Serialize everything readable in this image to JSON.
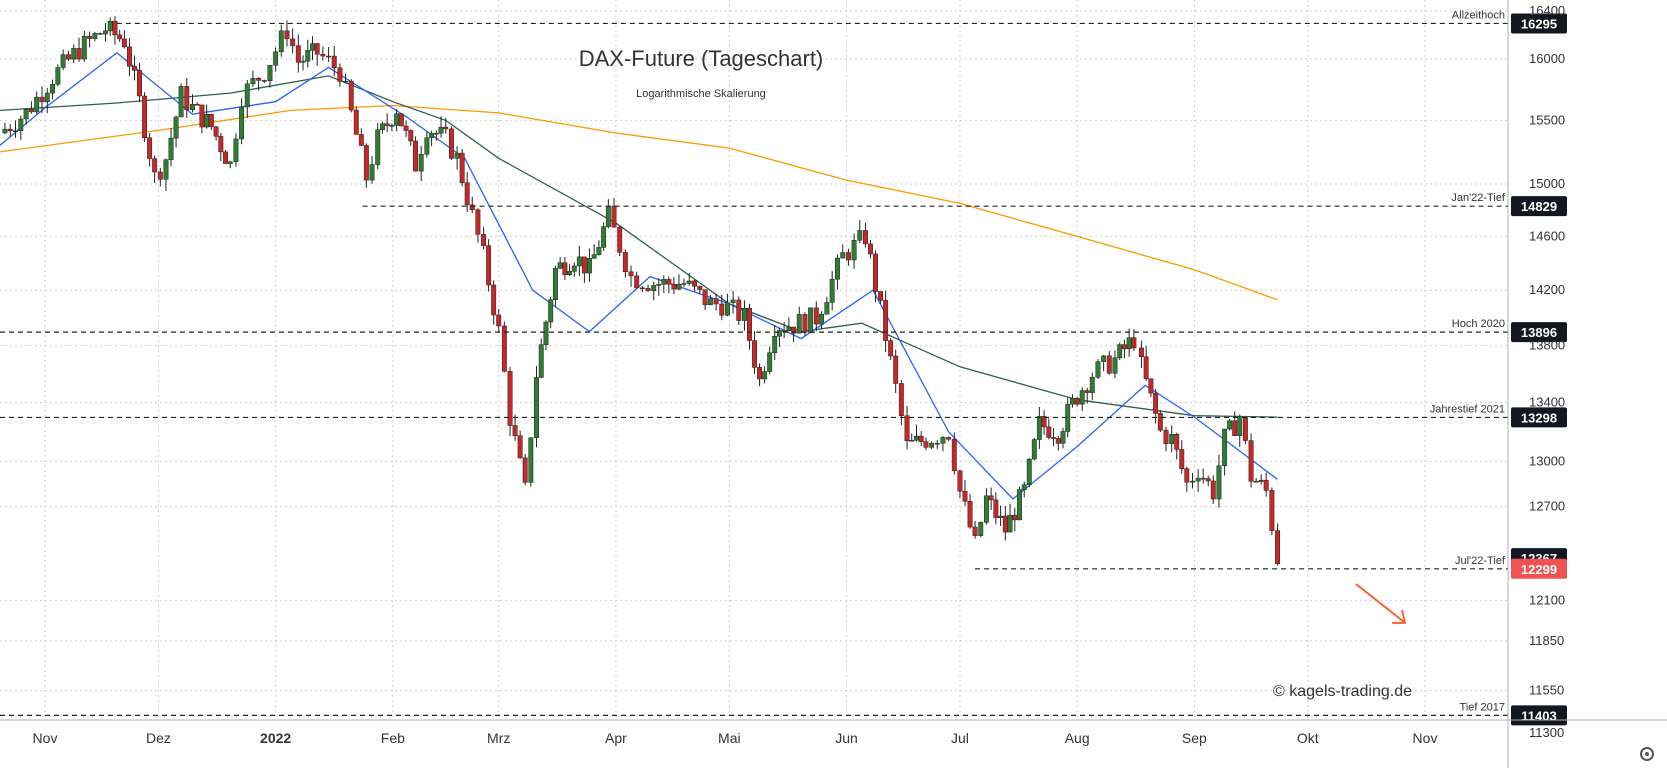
{
  "chart_data": {
    "type": "candlestick",
    "title": "DAX-Future (Tageschart)",
    "subtitle": "Logarithmische Skalierung",
    "watermark": "© kagels-trading.de",
    "y_scale": "log",
    "ylim": [
      11300,
      16400
    ],
    "y_ticks": [
      "16400",
      "16000",
      "15500",
      "15000",
      "14600",
      "14200",
      "13800",
      "13400",
      "13000",
      "12700",
      "12100",
      "11850",
      "11550",
      "11300"
    ],
    "x_ticks": [
      {
        "label": "Nov",
        "date": "2021-11-01"
      },
      {
        "label": "Dez",
        "date": "2021-12-01"
      },
      {
        "label": "2022",
        "date": "2022-01-01",
        "bold": true
      },
      {
        "label": "Feb",
        "date": "2022-02-01"
      },
      {
        "label": "Mrz",
        "date": "2022-03-01"
      },
      {
        "label": "Apr",
        "date": "2022-04-01"
      },
      {
        "label": "Mai",
        "date": "2022-05-01"
      },
      {
        "label": "Jun",
        "date": "2022-06-01"
      },
      {
        "label": "Jul",
        "date": "2022-07-01"
      },
      {
        "label": "Aug",
        "date": "2022-08-01"
      },
      {
        "label": "Sep",
        "date": "2022-09-01"
      },
      {
        "label": "Okt",
        "date": "2022-10-01"
      },
      {
        "label": "Nov",
        "date": "2022-11-01"
      }
    ],
    "levels": [
      {
        "value": 16295,
        "label": "Allzeithoch",
        "badge": "16295",
        "from": "2021-11-20"
      },
      {
        "value": 14829,
        "label": "Jan'22-Tief",
        "badge": "14829",
        "from": "2022-01-24"
      },
      {
        "value": 13896,
        "label": "Hoch 2020",
        "badge": "13896",
        "from": "2021-10-20"
      },
      {
        "value": 13298,
        "label": "Jahrestief 2021",
        "badge": "13298",
        "from": "2021-10-20"
      },
      {
        "value": 12299,
        "label": "Jul'22-Tief",
        "badge": "12299",
        "from": "2022-07-05"
      },
      {
        "value": 11403,
        "label": "Tief 2017",
        "badge": "11403",
        "from": "2021-10-20"
      }
    ],
    "price_badges": [
      {
        "value": 12367,
        "text": "12367",
        "color": "#131722"
      },
      {
        "value": 12299,
        "text": "12299",
        "color": "#ef5350"
      }
    ],
    "candles": {
      "colors": {
        "up": "#2e7d32",
        "down": "#c62828",
        "wick": "#222222"
      },
      "points": [
        {
          "d": "2021-10-20",
          "c": 15400
        },
        {
          "d": "2021-10-27",
          "c": 15560
        },
        {
          "d": "2021-11-03",
          "c": 15850
        },
        {
          "d": "2021-11-10",
          "c": 16080
        },
        {
          "d": "2021-11-17",
          "c": 16250
        },
        {
          "d": "2021-11-22",
          "c": 16150
        },
        {
          "d": "2021-11-26",
          "c": 15650
        },
        {
          "d": "2021-11-30",
          "c": 15050
        },
        {
          "d": "2021-12-03",
          "c": 15200
        },
        {
          "d": "2021-12-07",
          "c": 15700
        },
        {
          "d": "2021-12-10",
          "c": 15600
        },
        {
          "d": "2021-12-15",
          "c": 15450
        },
        {
          "d": "2021-12-20",
          "c": 15150
        },
        {
          "d": "2021-12-23",
          "c": 15700
        },
        {
          "d": "2021-12-29",
          "c": 15900
        },
        {
          "d": "2022-01-04",
          "c": 16240
        },
        {
          "d": "2022-01-07",
          "c": 15980
        },
        {
          "d": "2022-01-12",
          "c": 16050
        },
        {
          "d": "2022-01-18",
          "c": 15900
        },
        {
          "d": "2022-01-21",
          "c": 15550
        },
        {
          "d": "2022-01-25",
          "c": 15050
        },
        {
          "d": "2022-01-28",
          "c": 15350
        },
        {
          "d": "2022-02-02",
          "c": 15600
        },
        {
          "d": "2022-02-07",
          "c": 15150
        },
        {
          "d": "2022-02-10",
          "c": 15450
        },
        {
          "d": "2022-02-15",
          "c": 15350
        },
        {
          "d": "2022-02-18",
          "c": 15200
        },
        {
          "d": "2022-02-22",
          "c": 14750
        },
        {
          "d": "2022-02-25",
          "c": 14450
        },
        {
          "d": "2022-03-01",
          "c": 13900
        },
        {
          "d": "2022-03-04",
          "c": 13300
        },
        {
          "d": "2022-03-08",
          "c": 12800
        },
        {
          "d": "2022-03-11",
          "c": 13600
        },
        {
          "d": "2022-03-16",
          "c": 14350
        },
        {
          "d": "2022-03-21",
          "c": 14450
        },
        {
          "d": "2022-03-25",
          "c": 14350
        },
        {
          "d": "2022-03-30",
          "c": 14750
        },
        {
          "d": "2022-04-05",
          "c": 14300
        },
        {
          "d": "2022-04-11",
          "c": 14250
        },
        {
          "d": "2022-04-19",
          "c": 14250
        },
        {
          "d": "2022-04-26",
          "c": 14100
        },
        {
          "d": "2022-04-29",
          "c": 14100
        },
        {
          "d": "2022-05-05",
          "c": 14000
        },
        {
          "d": "2022-05-09",
          "c": 13550
        },
        {
          "d": "2022-05-13",
          "c": 13950
        },
        {
          "d": "2022-05-18",
          "c": 13950
        },
        {
          "d": "2022-05-24",
          "c": 14000
        },
        {
          "d": "2022-05-31",
          "c": 14450
        },
        {
          "d": "2022-06-06",
          "c": 14600
        },
        {
          "d": "2022-06-10",
          "c": 14050
        },
        {
          "d": "2022-06-14",
          "c": 13500
        },
        {
          "d": "2022-06-17",
          "c": 13100
        },
        {
          "d": "2022-06-22",
          "c": 13150
        },
        {
          "d": "2022-06-28",
          "c": 13200
        },
        {
          "d": "2022-07-01",
          "c": 12800
        },
        {
          "d": "2022-07-05",
          "c": 12450
        },
        {
          "d": "2022-07-08",
          "c": 12750
        },
        {
          "d": "2022-07-13",
          "c": 12550
        },
        {
          "d": "2022-07-18",
          "c": 12800
        },
        {
          "d": "2022-07-22",
          "c": 13250
        },
        {
          "d": "2022-07-27",
          "c": 13200
        },
        {
          "d": "2022-08-01",
          "c": 13450
        },
        {
          "d": "2022-08-05",
          "c": 13600
        },
        {
          "d": "2022-08-11",
          "c": 13700
        },
        {
          "d": "2022-08-16",
          "c": 13850
        },
        {
          "d": "2022-08-18",
          "c": 13650
        },
        {
          "d": "2022-08-23",
          "c": 13200
        },
        {
          "d": "2022-08-26",
          "c": 13150
        },
        {
          "d": "2022-08-30",
          "c": 12850
        },
        {
          "d": "2022-09-02",
          "c": 12950
        },
        {
          "d": "2022-09-06",
          "c": 12800
        },
        {
          "d": "2022-09-09",
          "c": 13150
        },
        {
          "d": "2022-09-13",
          "c": 13300
        },
        {
          "d": "2022-09-16",
          "c": 12900
        },
        {
          "d": "2022-09-20",
          "c": 12800
        },
        {
          "d": "2022-09-23",
          "c": 12367
        }
      ]
    },
    "indicators": [
      {
        "color": "#ff9800",
        "points": [
          {
            "d": "2021-10-20",
            "v": 15250
          },
          {
            "d": "2021-12-01",
            "v": 15420
          },
          {
            "d": "2022-01-05",
            "v": 15580
          },
          {
            "d": "2022-02-01",
            "v": 15620
          },
          {
            "d": "2022-03-01",
            "v": 15560
          },
          {
            "d": "2022-04-01",
            "v": 15400
          },
          {
            "d": "2022-05-01",
            "v": 15280
          },
          {
            "d": "2022-06-01",
            "v": 15030
          },
          {
            "d": "2022-07-01",
            "v": 14850
          },
          {
            "d": "2022-08-01",
            "v": 14600
          },
          {
            "d": "2022-09-01",
            "v": 14350
          },
          {
            "d": "2022-09-23",
            "v": 14130
          }
        ]
      },
      {
        "color": "#2e5e4e",
        "points": [
          {
            "d": "2021-10-20",
            "v": 15580
          },
          {
            "d": "2021-11-20",
            "v": 15640
          },
          {
            "d": "2021-12-20",
            "v": 15720
          },
          {
            "d": "2022-01-15",
            "v": 15860
          },
          {
            "d": "2022-02-01",
            "v": 15650
          },
          {
            "d": "2022-02-15",
            "v": 15500
          },
          {
            "d": "2022-03-01",
            "v": 15200
          },
          {
            "d": "2022-04-01",
            "v": 14700
          },
          {
            "d": "2022-05-01",
            "v": 14100
          },
          {
            "d": "2022-05-20",
            "v": 13900
          },
          {
            "d": "2022-06-05",
            "v": 13960
          },
          {
            "d": "2022-07-01",
            "v": 13650
          },
          {
            "d": "2022-08-01",
            "v": 13420
          },
          {
            "d": "2022-09-01",
            "v": 13310
          },
          {
            "d": "2022-09-23",
            "v": 13300
          }
        ]
      },
      {
        "color": "#2962ff",
        "points": [
          {
            "d": "2021-10-20",
            "v": 15300
          },
          {
            "d": "2021-11-01",
            "v": 15600
          },
          {
            "d": "2021-11-20",
            "v": 16050
          },
          {
            "d": "2021-12-10",
            "v": 15550
          },
          {
            "d": "2022-01-01",
            "v": 15650
          },
          {
            "d": "2022-01-15",
            "v": 15930
          },
          {
            "d": "2022-02-05",
            "v": 15520
          },
          {
            "d": "2022-02-20",
            "v": 15200
          },
          {
            "d": "2022-03-10",
            "v": 14200
          },
          {
            "d": "2022-03-25",
            "v": 13900
          },
          {
            "d": "2022-04-10",
            "v": 14300
          },
          {
            "d": "2022-05-01",
            "v": 14100
          },
          {
            "d": "2022-05-20",
            "v": 13850
          },
          {
            "d": "2022-06-08",
            "v": 14200
          },
          {
            "d": "2022-06-28",
            "v": 13200
          },
          {
            "d": "2022-07-15",
            "v": 12750
          },
          {
            "d": "2022-08-01",
            "v": 13100
          },
          {
            "d": "2022-08-19",
            "v": 13520
          },
          {
            "d": "2022-09-01",
            "v": 13300
          },
          {
            "d": "2022-09-23",
            "v": 12880
          }
        ]
      }
    ],
    "annotation_arrow": {
      "color": "#ff5722",
      "direction": "down-right"
    }
  }
}
